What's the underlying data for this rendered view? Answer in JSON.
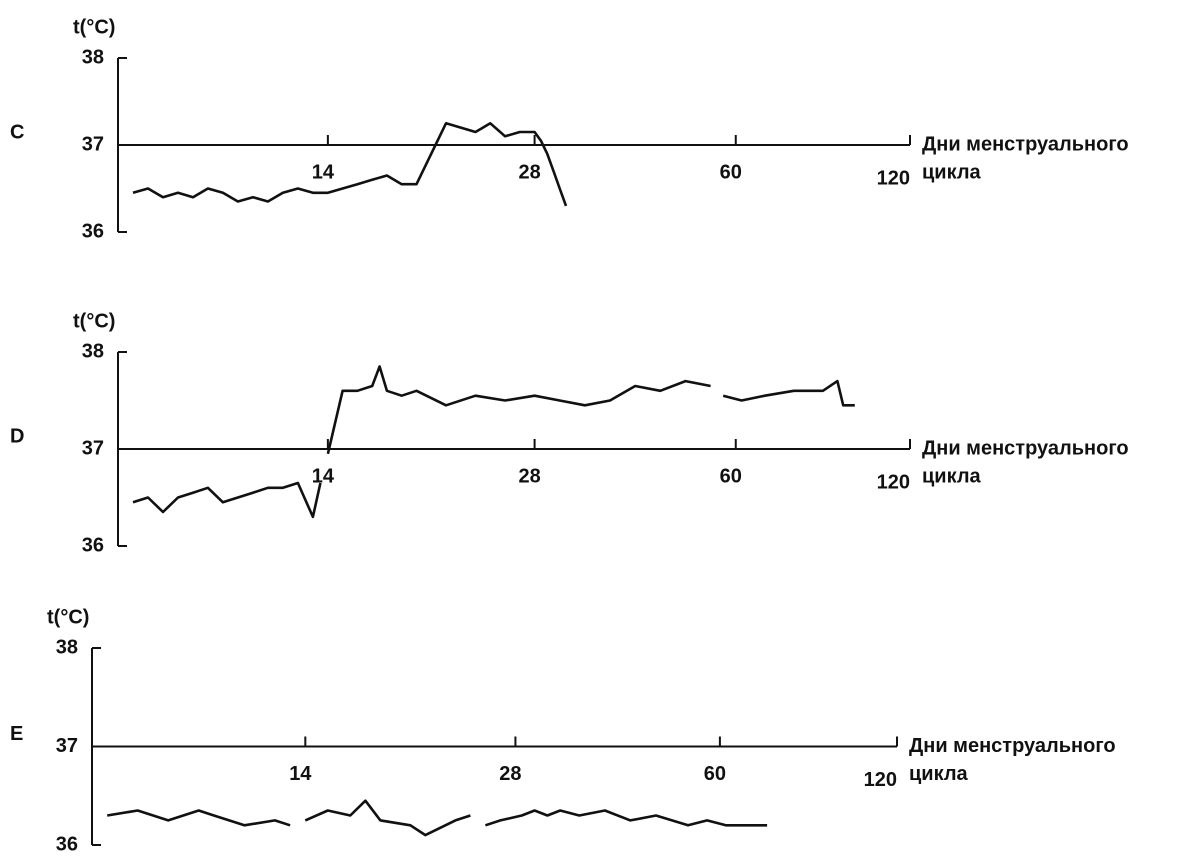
{
  "chart_data": [
    {
      "type": "line",
      "panel": "C",
      "ylabel": "t(°C)",
      "xlabel": [
        "Дни менструального",
        "цикла"
      ],
      "xlim": [
        0,
        120
      ],
      "xticks": [
        14,
        28,
        60,
        120
      ],
      "ylim": [
        36,
        38
      ],
      "yticks": [
        36,
        37,
        38
      ],
      "color": "#111111",
      "x": [
        1,
        2,
        3,
        4,
        5,
        6,
        7,
        8,
        9,
        10,
        11,
        12,
        13,
        14,
        15,
        16,
        17,
        18,
        19,
        20,
        22,
        23,
        24,
        25,
        26,
        27,
        28,
        29,
        30,
        31,
        32,
        33
      ],
      "values": [
        36.45,
        36.5,
        36.4,
        36.45,
        36.4,
        36.5,
        36.45,
        36.35,
        36.4,
        36.35,
        36.45,
        36.5,
        36.45,
        36.45,
        36.5,
        36.55,
        36.6,
        36.65,
        36.55,
        36.55,
        37.25,
        37.2,
        37.15,
        37.25,
        37.1,
        37.15,
        37.15,
        37.05,
        36.9,
        36.7,
        36.5,
        36.3
      ]
    },
    {
      "type": "line",
      "panel": "D",
      "ylabel": "t(°C)",
      "xlabel": [
        "Дни менструального",
        "цикла"
      ],
      "xlim": [
        0,
        120
      ],
      "xticks": [
        14,
        28,
        60,
        120
      ],
      "ylim": [
        36,
        38
      ],
      "yticks": [
        36,
        37,
        38
      ],
      "color": "#111111",
      "x": [
        1,
        2,
        3,
        4,
        5,
        6,
        7,
        8,
        9,
        10,
        11,
        12,
        13,
        13.5,
        13.8,
        14,
        15,
        16,
        17,
        17.5,
        18,
        19,
        20,
        22,
        24,
        26,
        28,
        32,
        36,
        40,
        44,
        48,
        52,
        56,
        57,
        58,
        62,
        70,
        80,
        90,
        95,
        97,
        101
      ],
      "values": [
        36.45,
        36.5,
        36.35,
        36.5,
        36.55,
        36.6,
        36.45,
        36.5,
        36.55,
        36.6,
        36.6,
        36.65,
        36.3,
        36.65,
        null,
        36.95,
        37.6,
        37.6,
        37.65,
        37.85,
        37.6,
        37.55,
        37.6,
        37.45,
        37.55,
        37.5,
        37.55,
        37.5,
        37.45,
        37.5,
        37.65,
        37.6,
        37.7,
        37.65,
        null,
        37.55,
        37.5,
        37.55,
        37.6,
        37.6,
        37.7,
        37.45,
        37.45
      ]
    },
    {
      "type": "line",
      "panel": "E",
      "ylabel": "t(°C)",
      "xlabel": [
        "Дни менструального",
        "цикла"
      ],
      "xlim": [
        0,
        120
      ],
      "xticks": [
        14,
        28,
        60,
        120
      ],
      "ylim": [
        36,
        38
      ],
      "yticks": [
        36,
        37,
        38
      ],
      "color": "#111111",
      "x": [
        1,
        3,
        5,
        7,
        8,
        10,
        12,
        13,
        13.5,
        14,
        15.5,
        17,
        18,
        19,
        21,
        22,
        24,
        25,
        25.5,
        26,
        27,
        29,
        31,
        33,
        35,
        38,
        42,
        46,
        50,
        55,
        58,
        62,
        70,
        76
      ],
      "values": [
        36.3,
        36.35,
        36.25,
        36.35,
        36.3,
        36.2,
        36.25,
        36.2,
        null,
        36.25,
        36.35,
        36.3,
        36.45,
        36.25,
        36.2,
        36.1,
        36.25,
        36.3,
        null,
        36.2,
        36.25,
        36.3,
        36.35,
        36.3,
        36.35,
        36.3,
        36.35,
        36.25,
        36.3,
        36.2,
        36.25,
        36.2,
        36.2,
        36.2
      ]
    }
  ]
}
